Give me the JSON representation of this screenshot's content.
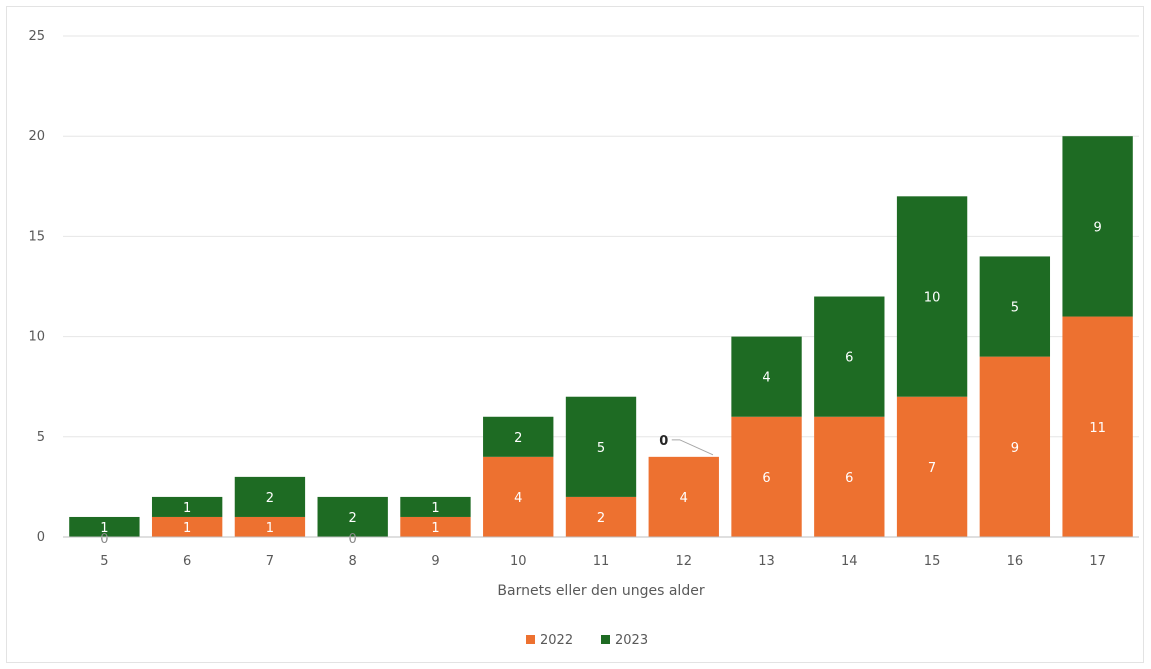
{
  "chart_data": {
    "type": "bar",
    "stacked": true,
    "categories": [
      "5",
      "6",
      "7",
      "8",
      "9",
      "10",
      "11",
      "12",
      "13",
      "14",
      "15",
      "16",
      "17"
    ],
    "series": [
      {
        "name": "2022",
        "color": "#ED7130",
        "values": [
          0,
          1,
          1,
          0,
          1,
          4,
          2,
          4,
          6,
          6,
          7,
          9,
          11
        ]
      },
      {
        "name": "2023",
        "color": "#1E6B23",
        "values": [
          1,
          1,
          2,
          2,
          1,
          2,
          5,
          0,
          4,
          6,
          10,
          5,
          9
        ]
      }
    ],
    "title": "",
    "xlabel": "Barnets eller den unges alder",
    "ylabel": "",
    "ylim": [
      0,
      25
    ],
    "yticks": [
      "0",
      "5",
      "10",
      "15",
      "20",
      "25"
    ],
    "grid": true,
    "legend_position": "bottom"
  }
}
